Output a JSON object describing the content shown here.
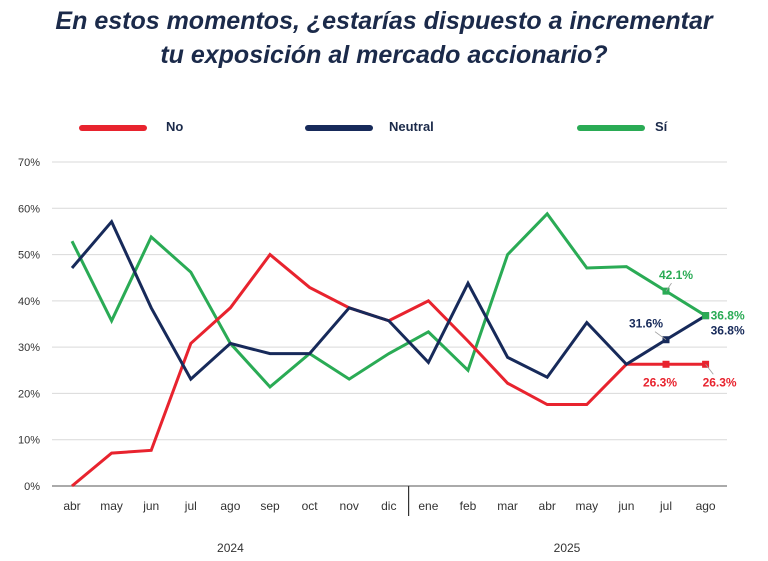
{
  "title": {
    "line1": "En estos momentos, ¿estarías dispuesto a incrementar",
    "line2": "tu exposición al mercado accionario?"
  },
  "chart_data": {
    "type": "line",
    "title": "En estos momentos, ¿estarías dispuesto a incrementar tu exposición al mercado accionario?",
    "categories": [
      "abr",
      "may",
      "jun",
      "jul",
      "ago",
      "sep",
      "oct",
      "nov",
      "dic",
      "ene",
      "feb",
      "mar",
      "abr",
      "may",
      "jun",
      "jul",
      "ago"
    ],
    "years": [
      {
        "label": "2024",
        "from": 0,
        "to": 8
      },
      {
        "label": "2025",
        "from": 9,
        "to": 16
      }
    ],
    "ylim": [
      0,
      70
    ],
    "yticks": [
      0,
      10,
      20,
      30,
      40,
      50,
      60,
      70
    ],
    "ytick_labels": [
      "0%",
      "10%",
      "20%",
      "30%",
      "40%",
      "50%",
      "60%",
      "70%"
    ],
    "legend_position": "top",
    "series": [
      {
        "name": "No",
        "color": "#e8232e",
        "values": [
          0,
          7.1,
          7.7,
          30.8,
          38.5,
          50.0,
          42.9,
          38.5,
          35.7,
          40.0,
          31.3,
          22.2,
          17.6,
          17.6,
          26.3,
          26.3,
          26.3
        ],
        "labels": [
          {
            "index": 15,
            "text": "26.3%"
          },
          {
            "index": 16,
            "text": "26.3%"
          }
        ]
      },
      {
        "name": "Neutral",
        "color": "#172a5a",
        "values": [
          47.1,
          57.1,
          38.5,
          23.1,
          30.8,
          28.6,
          28.6,
          38.5,
          35.7,
          26.7,
          43.8,
          27.8,
          23.5,
          35.3,
          26.3,
          31.6,
          36.8
        ],
        "labels": [
          {
            "index": 15,
            "text": "31.6%"
          },
          {
            "index": 16,
            "text": "36.8%"
          }
        ]
      },
      {
        "name": "Sí",
        "color": "#2aab55",
        "values": [
          52.9,
          35.7,
          53.8,
          46.2,
          30.8,
          21.4,
          28.6,
          23.1,
          28.6,
          33.3,
          25.0,
          50.0,
          58.8,
          47.1,
          47.4,
          42.1,
          36.8
        ],
        "labels": [
          {
            "index": 15,
            "text": "42.1%"
          },
          {
            "index": 16,
            "text": "36.8%"
          }
        ]
      }
    ]
  }
}
